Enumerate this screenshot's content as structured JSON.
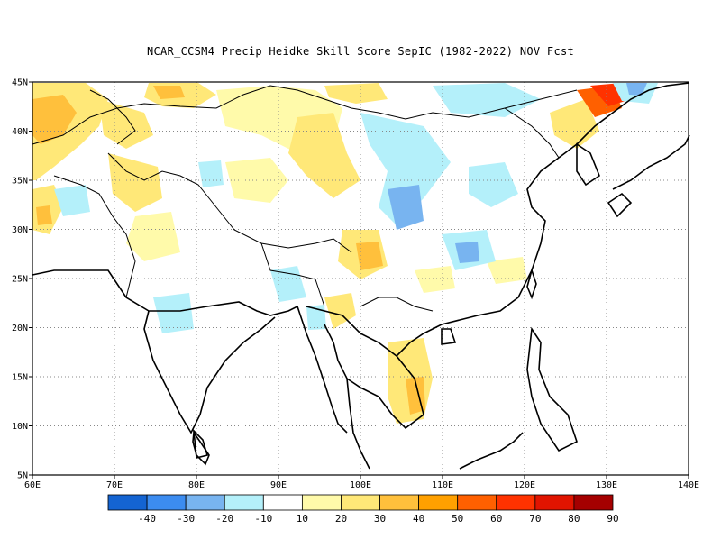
{
  "title": "NCAR_CCSM4 Precip Heidke Skill Score SepIC (1982-2022) NOV Fcst",
  "map": {
    "lon_range": [
      60,
      140
    ],
    "lat_range": [
      5,
      45
    ],
    "lat_labels": [
      "5N",
      "10N",
      "15N",
      "20N",
      "25N",
      "30N",
      "35N",
      "40N",
      "45N"
    ],
    "lon_labels": [
      "60E",
      "70E",
      "80E",
      "90E",
      "100E",
      "110E",
      "120E",
      "130E",
      "140E"
    ],
    "grid": "dotted"
  },
  "colorbar": {
    "colors": [
      "#1464d2",
      "#3c8cf0",
      "#78b4f0",
      "#b4f0fa",
      "#ffffff",
      "#fffaaa",
      "#ffe878",
      "#ffc03c",
      "#ffa000",
      "#ff6000",
      "#ff3200",
      "#e11400",
      "#a50000"
    ],
    "labels": [
      "-40",
      "-30",
      "-20",
      "-10",
      "10",
      "20",
      "30",
      "40",
      "50",
      "60",
      "70",
      "80",
      "90"
    ]
  }
}
